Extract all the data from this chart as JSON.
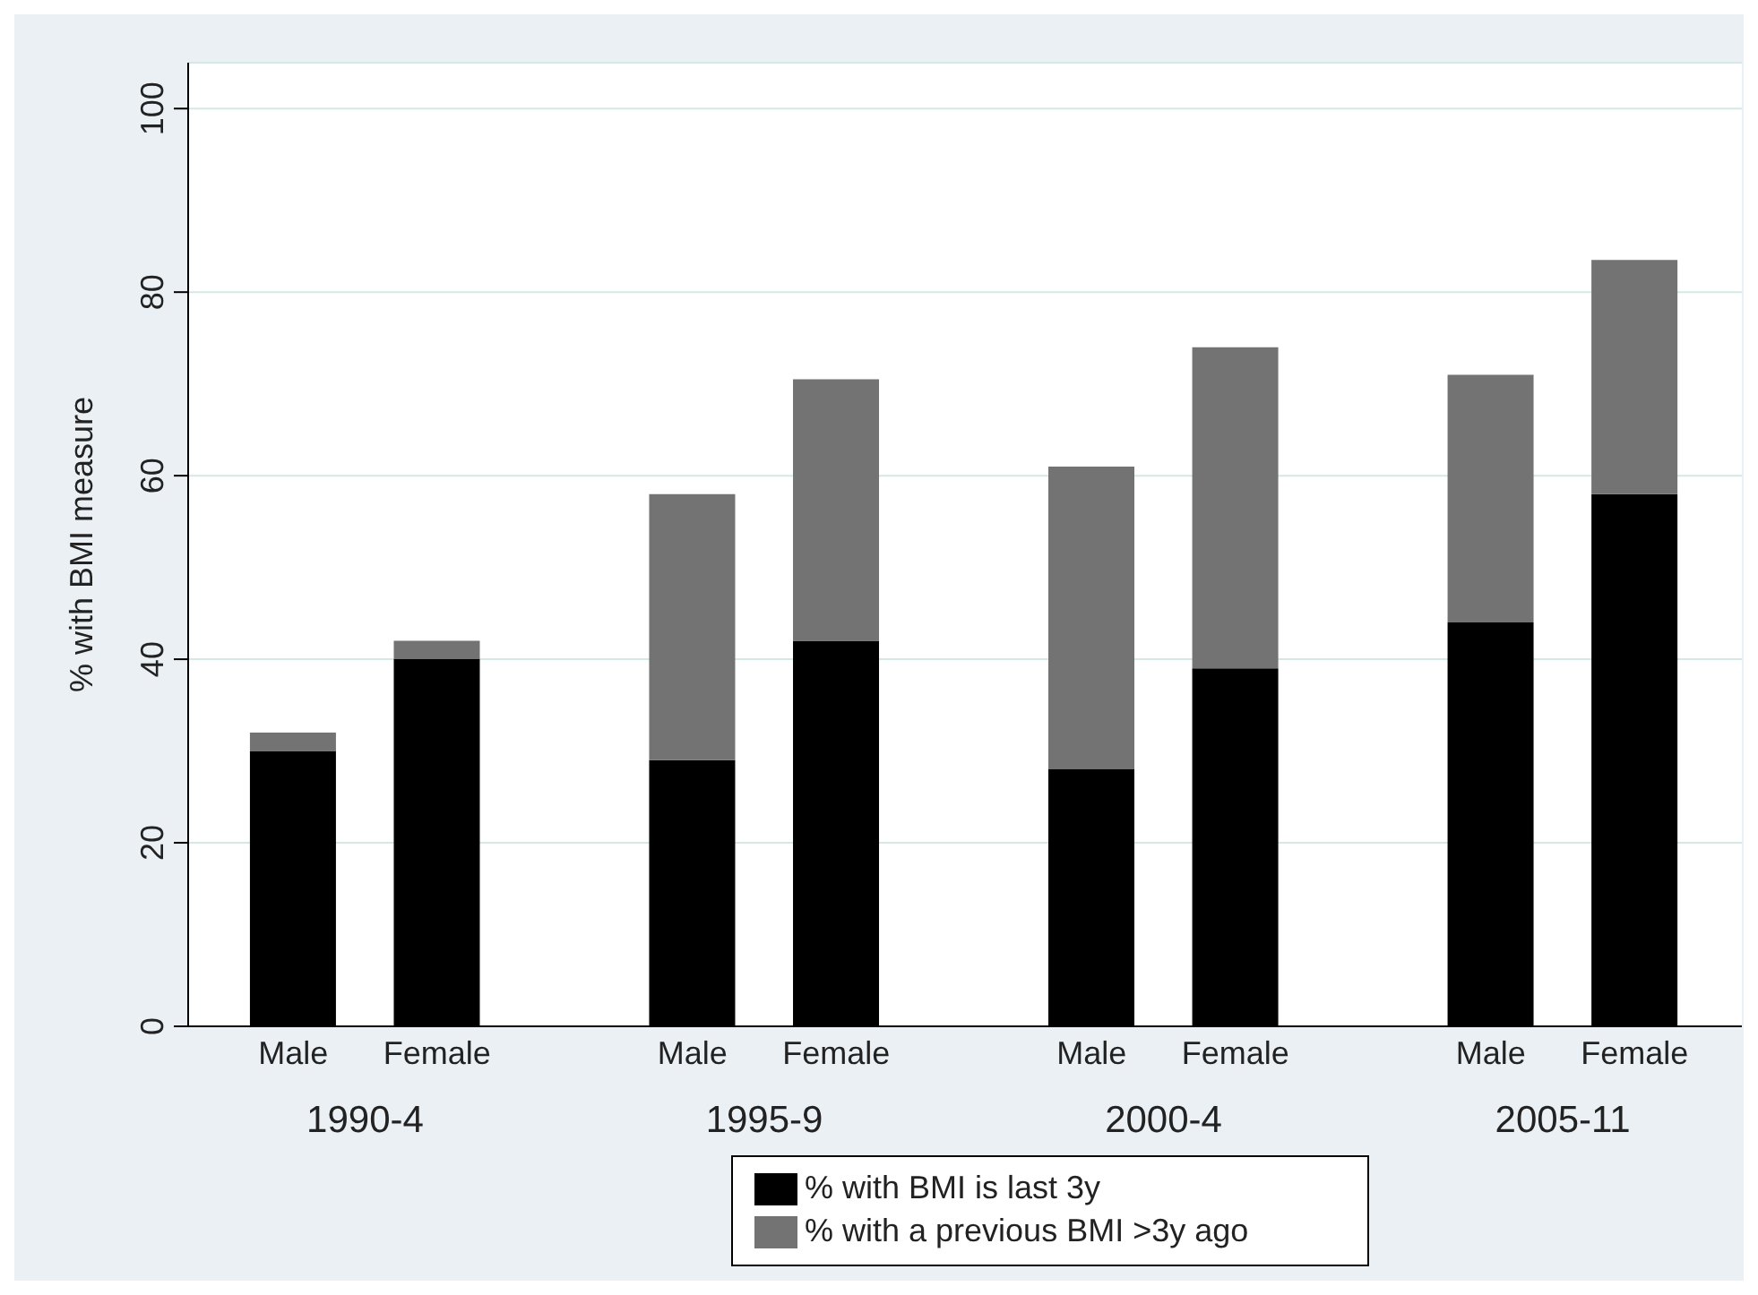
{
  "chart_data": {
    "type": "bar",
    "ylabel": "% with BMI measure",
    "categories": [
      "Male",
      "Female",
      "Male",
      "Female",
      "Male",
      "Female",
      "Male",
      "Female"
    ],
    "annotations": [
      "1990-4",
      "1995-9",
      "2000-4",
      "2005-11"
    ],
    "series": [
      {
        "name": "% with BMI is last 3y",
        "color": "#000000",
        "values": [
          30,
          40,
          29,
          42,
          28,
          39,
          44,
          58
        ]
      },
      {
        "name": "% with a previous BMI >3y ago",
        "color": "#737373",
        "values": [
          2,
          2,
          29,
          28.5,
          33,
          35,
          27,
          25.5
        ]
      }
    ],
    "stacked": true,
    "ylim": [
      0,
      105
    ],
    "yticks": [
      0,
      20,
      40,
      60,
      80,
      100
    ],
    "grid": "y",
    "legend": "bottom"
  }
}
